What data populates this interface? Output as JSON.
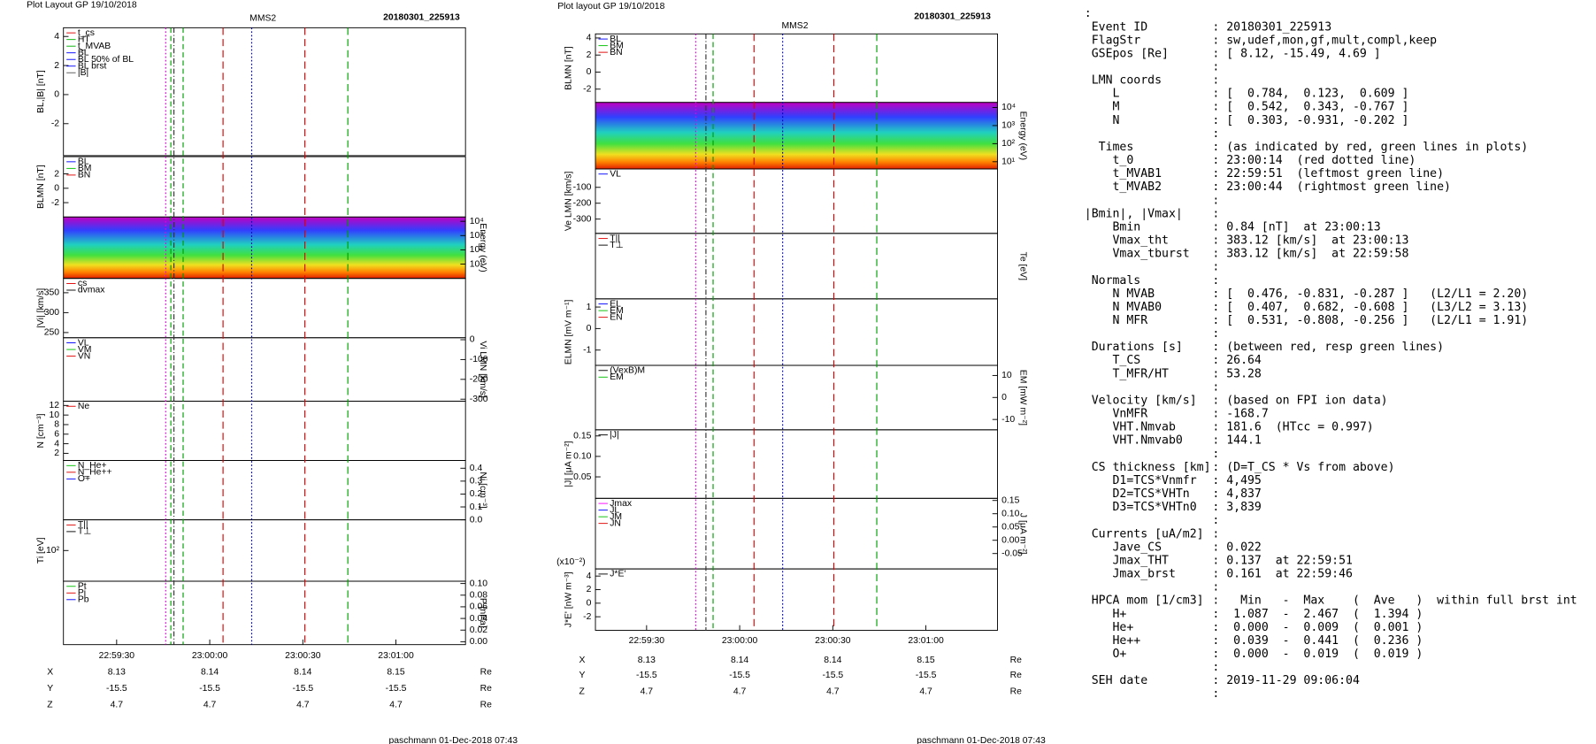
{
  "plots": [
    {
      "header": "Plot Layout GP 19/10/2018",
      "title": "MMS2",
      "event": "20180301_225913",
      "panels": [
        {
          "ylabel": "BL,|B| [nT]",
          "ylim": [
            -4.2,
            4.6
          ],
          "yticks": [
            -2,
            0,
            2,
            4
          ],
          "legend": [
            {
              "name": "t_cs",
              "color": "#e00000"
            },
            {
              "name": "HT",
              "color": "#00b000"
            },
            {
              "name": "t_MVAB",
              "color": "#00b000"
            },
            {
              "name": "BL",
              "color": "#0000ff"
            },
            {
              "name": "BL 50% of BL",
              "color": "#0000ff"
            },
            {
              "name": "BL brst",
              "color": "#0000ff"
            },
            {
              "name": "|B|",
              "color": "#555555"
            }
          ]
        },
        {
          "ylabel": "BLMN [nT]",
          "ylim": [
            -4,
            4.4
          ],
          "yticks": [
            -2,
            0,
            2
          ],
          "legend": [
            {
              "name": "BL",
              "color": "#0000ff"
            },
            {
              "name": "BM",
              "color": "#00c000"
            },
            {
              "name": "BN",
              "color": "#e00000"
            }
          ]
        },
        {
          "ylabel": "Energy (eV)",
          "axis": "y2",
          "log": true,
          "spectrogram": true,
          "ylim": [
            1,
            20000
          ],
          "yticks": [
            {
              "value": 10000,
              "label": "10⁴"
            },
            {
              "value": 1000,
              "label": "10³"
            },
            {
              "value": 100,
              "label": "10²"
            },
            {
              "value": 10,
              "label": "10¹"
            }
          ]
        },
        {
          "ylabel": "|Vi| [km/s]",
          "ylim": [
            237,
            386
          ],
          "yticks": [
            250,
            300,
            350
          ],
          "legend": [
            {
              "name": "cs",
              "color": "#e00000"
            },
            {
              "name": "dvmax",
              "color": "#000000"
            }
          ]
        },
        {
          "ylabel": "Vi LMN [km/s]",
          "axis": "y2",
          "ylim": [
            -310,
            10
          ],
          "yticks": [
            0,
            -100,
            -200,
            -300
          ],
          "legend": [
            {
              "name": "VL",
              "color": "#0000ff"
            },
            {
              "name": "VM",
              "color": "#00c000"
            },
            {
              "name": "VN",
              "color": "#e00000"
            }
          ]
        },
        {
          "ylabel": "N [cm⁻³]",
          "ylim": [
            0.5,
            12.9
          ],
          "yticks": [
            2,
            4,
            6,
            8,
            10,
            12
          ],
          "legend": [
            {
              "name": "Ne",
              "color": "#e00000"
            }
          ]
        },
        {
          "ylabel": "Ni [cm⁻³]",
          "axis": "y2",
          "ylim": [
            0,
            0.46
          ],
          "yticks": [
            {
              "value": 0,
              "label": "0.0"
            },
            0.1,
            0.2,
            0.3,
            0.4
          ],
          "legend": [
            {
              "name": "N_He+",
              "color": "#00c000"
            },
            {
              "name": "N_He++",
              "color": "#e00000"
            },
            {
              "name": "O+",
              "color": "#0000ff"
            }
          ]
        },
        {
          "ylabel": "Ti [eV]",
          "log": true,
          "ylim": [
            25,
            400
          ],
          "yticks": [
            {
              "value": 100,
              "label": "10²"
            }
          ],
          "legend": [
            {
              "name": "T||",
              "color": "#e00000"
            },
            {
              "name": "T⊥",
              "color": "#000000"
            }
          ]
        },
        {
          "ylabel": "P [nPa]",
          "axis": "y2",
          "ylim": [
            -0.005,
            0.104
          ],
          "yticks": [
            {
              "value": 0,
              "label": "0.00"
            },
            0.02,
            0.04,
            0.06,
            0.08,
            {
              "value": 0.1,
              "label": "0.10"
            }
          ],
          "legend": [
            {
              "name": "Pt",
              "color": "#00c000"
            },
            {
              "name": "Pi",
              "color": "#e00000"
            },
            {
              "name": "Pb",
              "color": "#0000ff"
            }
          ]
        }
      ],
      "xticks": [
        "22:59:30",
        "23:00:00",
        "23:00:30",
        "23:01:00"
      ],
      "orbit": [
        {
          "label": "X",
          "values": [
            8.13,
            8.14,
            8.14,
            8.15
          ],
          "unit": "Re"
        },
        {
          "label": "Y",
          "values": [
            -15.5,
            -15.5,
            -15.5,
            -15.5
          ],
          "unit": "Re"
        },
        {
          "label": "Z",
          "values": [
            4.7,
            4.7,
            4.7,
            4.7
          ],
          "unit": "Re"
        }
      ],
      "footer": "paschmann 01-Dec-2018 07:43"
    },
    {
      "header": "Plot layout GP 19/10/2018",
      "title": "MMS2",
      "event": "20180301_225913",
      "panels": [
        {
          "ylabel": "BLMN [nT]",
          "ylim": [
            -3.56,
            4.48
          ],
          "yticks": [
            -2,
            0,
            2,
            4
          ],
          "legend": [
            {
              "name": "BL",
              "color": "#0000ff"
            },
            {
              "name": "BM",
              "color": "#00c000"
            },
            {
              "name": "BN",
              "color": "#e00000"
            }
          ]
        },
        {
          "ylabel": "Energy (eV)",
          "axis": "y2",
          "log": true,
          "spectrogram": true,
          "ylim": [
            4,
            19000
          ],
          "yticks": [
            {
              "value": 10000,
              "label": "10⁴"
            },
            {
              "value": 1000,
              "label": "10³"
            },
            {
              "value": 100,
              "label": "10²"
            },
            {
              "value": 10,
              "label": "10¹"
            }
          ]
        },
        {
          "ylabel": "Ve LMN [km/s]",
          "ylim": [
            -390,
            16
          ],
          "yticks": [
            -300,
            -200,
            -100
          ],
          "legend": [
            {
              "name": "VL",
              "color": "#0000ff"
            }
          ]
        },
        {
          "ylabel": "Te [eV]",
          "axis": "y2",
          "legend": [
            {
              "name": "T||",
              "color": "#e00000"
            },
            {
              "name": "T⊥",
              "color": "#000000"
            }
          ]
        },
        {
          "ylabel": "ELMN [mV m⁻¹]",
          "ylim": [
            -1.71,
            1.38
          ],
          "yticks": [
            -1,
            0,
            1
          ],
          "legend": [
            {
              "name": "EL",
              "color": "#0000ff"
            },
            {
              "name": "EM",
              "color": "#00c000"
            },
            {
              "name": "EN",
              "color": "#e00000"
            }
          ]
        },
        {
          "ylabel": "EM [mW m⁻²]",
          "axis": "y2",
          "ylim": [
            -14.7,
            14.6
          ],
          "yticks": [
            -10,
            0,
            10
          ],
          "legend": [
            {
              "name": "(VexB)M",
              "color": "#000000"
            },
            {
              "name": "EM",
              "color": "#00c000"
            }
          ]
        },
        {
          "ylabel": "|J| [μA m⁻²]",
          "ylim": [
            -0.0025,
            0.165
          ],
          "yticks": [
            0.05,
            {
              "value": 0.1,
              "label": "0.10"
            },
            0.15
          ],
          "legend": [
            {
              "name": "|J|",
              "color": "#000000"
            }
          ]
        },
        {
          "ylabel": "J [μA m⁻²]",
          "axis": "y2",
          "ylim": [
            -0.108,
            0.158
          ],
          "yticks": [
            -0.05,
            {
              "value": 0,
              "label": "0.00"
            },
            0.05,
            {
              "value": 0.1,
              "label": "0.10"
            },
            0.15
          ],
          "legend": [
            {
              "name": "Jmax",
              "color": "#ff00ff"
            },
            {
              "name": "JL",
              "color": "#0000ff"
            },
            {
              "name": "JM",
              "color": "#00c000"
            },
            {
              "name": "JN",
              "color": "#e00000"
            }
          ]
        },
        {
          "ylabel": "J*E' [nW m⁻³]",
          "note": "(x10⁻²)",
          "ylim": [
            -4,
            5.05
          ],
          "yticks": [
            -2,
            0,
            2,
            4
          ],
          "legend": [
            {
              "name": "J*E'",
              "color": "#000000"
            }
          ]
        }
      ],
      "xticks": [
        "22:59:30",
        "23:00:00",
        "23:00:30",
        "23:01:00"
      ],
      "orbit": [
        {
          "label": "X",
          "values": [
            8.13,
            8.14,
            8.14,
            8.15
          ],
          "unit": "Re"
        },
        {
          "label": "Y",
          "values": [
            -15.5,
            -15.5,
            -15.5,
            -15.5
          ],
          "unit": "Re"
        },
        {
          "label": "Z",
          "values": [
            4.7,
            4.7,
            4.7,
            4.7
          ],
          "unit": "Re"
        }
      ],
      "footer": "paschmann 01-Dec-2018 07:43"
    }
  ],
  "listing": [
    [
      ":"
    ],
    [
      " Event ID",
      ": 20180301_225913"
    ],
    [
      " FlagStr",
      ": sw,udef,mon,gf,mult,compl,keep"
    ],
    [
      " GSEpos [Re]",
      ": [ 8.12, -15.49, 4.69 ]"
    ],
    [
      ":"
    ],
    [
      " LMN coords",
      ":"
    ],
    [
      "    L",
      ": [  0.784,  0.123,  0.609 ]"
    ],
    [
      "    M",
      ": [  0.542,  0.343, -0.767 ]"
    ],
    [
      "    N",
      ": [  0.303, -0.931, -0.202 ]"
    ],
    [
      ":"
    ],
    [
      "  Times",
      ": (as indicated by red, green lines in plots)"
    ],
    [
      "    t_0",
      ": 23:00:14  (red dotted line)"
    ],
    [
      "    t_MVAB1",
      ": 22:59:51  (leftmost green line)"
    ],
    [
      "    t_MVAB2",
      ": 23:00:44  (rightmost green line)"
    ],
    [
      ":"
    ],
    [
      "|Bmin|, |Vmax|",
      ":"
    ],
    [
      "    Bmin",
      ": 0.84 [nT]  at 23:00:13"
    ],
    [
      "    Vmax_tht",
      ": 383.12 [km/s]  at 23:00:13"
    ],
    [
      "    Vmax_tburst",
      ": 383.12 [km/s]  at 22:59:58"
    ],
    [
      ":"
    ],
    [
      " Normals",
      ":"
    ],
    [
      "    N MVAB",
      ": [  0.476, -0.831, -0.287 ]   (L2/L1 = 2.20)"
    ],
    [
      "    N MVAB0",
      ": [  0.407,  0.682, -0.608 ]   (L3/L2 = 3.13)"
    ],
    [
      "    N MFR",
      ": [  0.531, -0.808, -0.256 ]   (L2/L1 = 1.91)"
    ],
    [
      ":"
    ],
    [
      " Durations [s]",
      ": (between red, resp green lines)"
    ],
    [
      "    T_CS",
      ": 26.64"
    ],
    [
      "    T_MFR/HT",
      ": 53.28"
    ],
    [
      ":"
    ],
    [
      " Velocity [km/s]",
      ": (based on FPI ion data)"
    ],
    [
      "    VnMFR",
      ": -168.7"
    ],
    [
      "    VHT.Nmvab",
      ": 181.6  (HTcc = 0.997)"
    ],
    [
      "    VHT.Nmvab0",
      ": 144.1"
    ],
    [
      ":"
    ],
    [
      " CS thickness [km]",
      ": (D=T_CS * Vs from above)"
    ],
    [
      "    D1=TCS*Vnmfr",
      ": 4,495"
    ],
    [
      "    D2=TCS*VHTn",
      ": 4,837"
    ],
    [
      "    D3=TCS*VHTn0",
      ": 3,839"
    ],
    [
      ":"
    ],
    [
      " Currents [uA/m2]",
      ":"
    ],
    [
      "    Jave_CS",
      ": 0.022"
    ],
    [
      "    Jmax_THT",
      ": 0.137  at 22:59:51"
    ],
    [
      "    Jmax_brst",
      ": 0.161  at 22:59:46"
    ],
    [
      ":"
    ],
    [
      " HPCA mom [1/cm3]",
      ":   Min   -  Max    (  Ave   )  within full brst int"
    ],
    [
      "    H+",
      ":  1.087  -  2.467  (  1.394 )"
    ],
    [
      "    He+",
      ":  0.000  -  0.009  (  0.001 )"
    ],
    [
      "    He++",
      ":  0.039  -  0.441  (  0.236 )"
    ],
    [
      "    O+",
      ":  0.000  -  0.019  (  0.019 )"
    ],
    [
      ":"
    ],
    [
      " SEH date",
      ": 2019-11-29 09:06:04"
    ],
    [
      ":"
    ]
  ]
}
